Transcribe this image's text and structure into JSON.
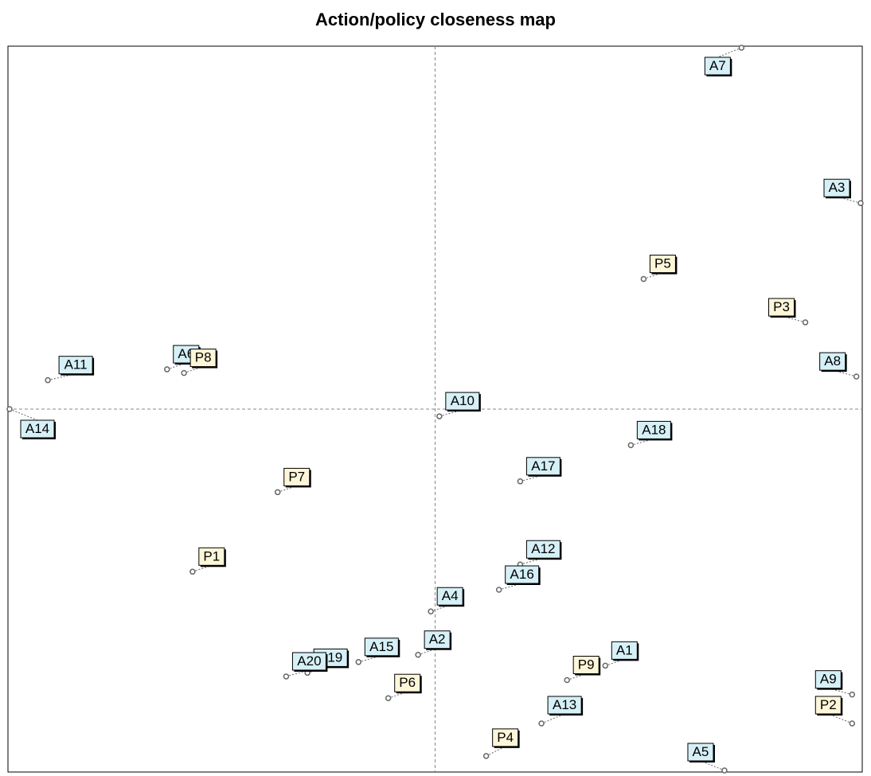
{
  "title": "Action/policy closeness map",
  "colors": {
    "action_fill": "#d6f0f7",
    "policy_fill": "#fdf6d8",
    "marker": "#666666",
    "axis": "#000000",
    "crosshair": "#888888"
  },
  "chart_data": {
    "type": "scatter",
    "title": "Action/policy closeness map",
    "xlabel": "",
    "ylabel": "",
    "xlim": [
      -1,
      1
    ],
    "ylim": [
      -1,
      1
    ],
    "grid": false,
    "crosshair_at": [
      0,
      0
    ],
    "series": [
      {
        "name": "",
        "kind": "action",
        "points": [
          {
            "label": "A1",
            "x": 0.4,
            "y": -0.71
          },
          {
            "label": "A2",
            "x": -0.04,
            "y": -0.68
          },
          {
            "label": "A3",
            "x": 1.0,
            "y": 0.57
          },
          {
            "label": "A4",
            "x": -0.01,
            "y": -0.56
          },
          {
            "label": "A5",
            "x": 0.68,
            "y": -1.0
          },
          {
            "label": "A6",
            "x": -0.63,
            "y": 0.11
          },
          {
            "label": "A7",
            "x": 0.72,
            "y": 1.0
          },
          {
            "label": "A8",
            "x": 0.99,
            "y": 0.09
          },
          {
            "label": "A9",
            "x": 0.98,
            "y": -0.79
          },
          {
            "label": "A10",
            "x": 0.01,
            "y": -0.02
          },
          {
            "label": "A11",
            "x": -0.91,
            "y": 0.08
          },
          {
            "label": "A12",
            "x": 0.2,
            "y": -0.43
          },
          {
            "label": "A13",
            "x": 0.25,
            "y": -0.87
          },
          {
            "label": "A14",
            "x": -1.0,
            "y": 0.0
          },
          {
            "label": "A15",
            "x": -0.18,
            "y": -0.7
          },
          {
            "label": "A16",
            "x": 0.15,
            "y": -0.5
          },
          {
            "label": "A17",
            "x": 0.2,
            "y": -0.2
          },
          {
            "label": "A18",
            "x": 0.46,
            "y": -0.1
          },
          {
            "label": "A19",
            "x": -0.3,
            "y": -0.73
          },
          {
            "label": "A20",
            "x": -0.35,
            "y": -0.74
          }
        ]
      },
      {
        "name": "",
        "kind": "policy",
        "points": [
          {
            "label": "P1",
            "x": -0.57,
            "y": -0.45
          },
          {
            "label": "P2",
            "x": 0.98,
            "y": -0.87
          },
          {
            "label": "P3",
            "x": 0.87,
            "y": 0.24
          },
          {
            "label": "P4",
            "x": 0.12,
            "y": -0.96
          },
          {
            "label": "P5",
            "x": 0.49,
            "y": 0.36
          },
          {
            "label": "P6",
            "x": -0.11,
            "y": -0.8
          },
          {
            "label": "P7",
            "x": -0.37,
            "y": -0.23
          },
          {
            "label": "P8",
            "x": -0.59,
            "y": 0.1
          },
          {
            "label": "P9",
            "x": 0.31,
            "y": -0.75
          }
        ]
      }
    ]
  }
}
